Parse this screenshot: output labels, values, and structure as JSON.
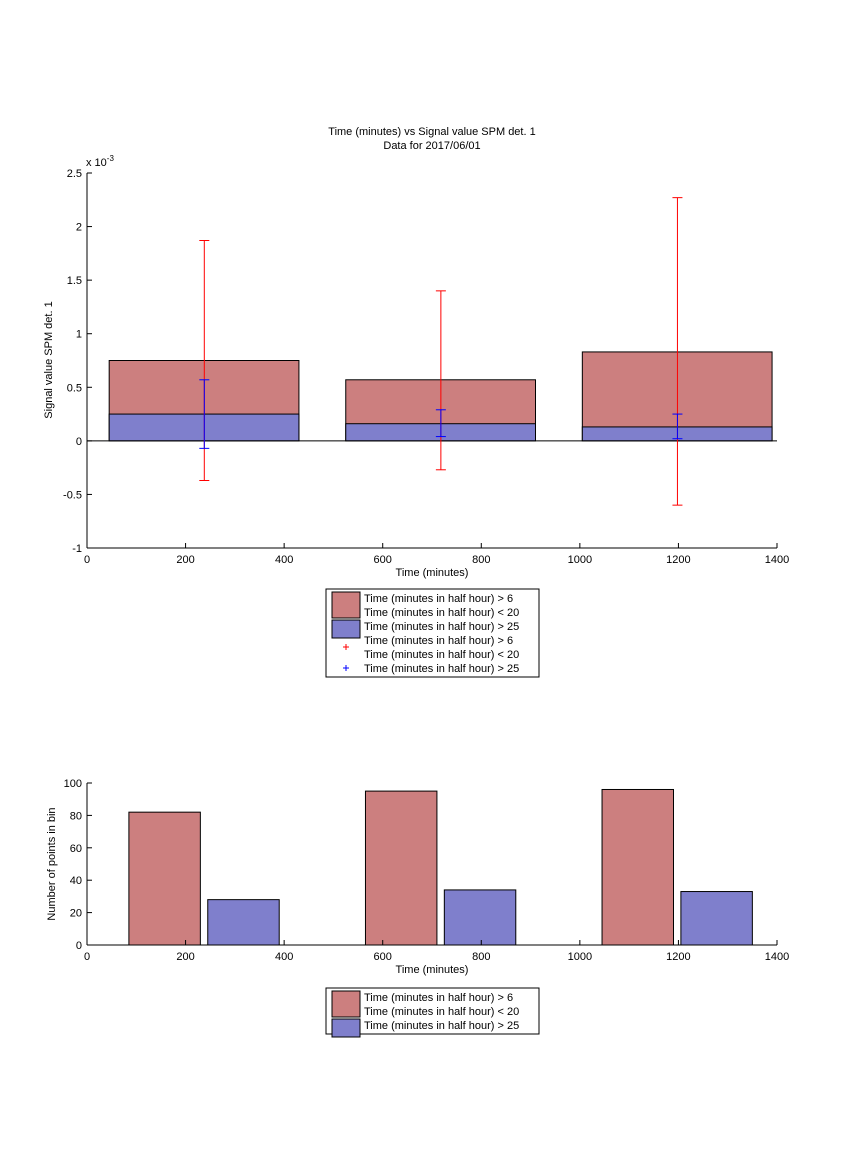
{
  "chart_data": [
    {
      "type": "bar",
      "title": "Time (minutes) vs Signal value SPM det. 1",
      "subtitle": "Data for 2017/06/01",
      "xlabel": "Time (minutes)",
      "ylabel": "Signal value SPM det. 1",
      "y_exponent_label": "x 10",
      "y_exponent_power": "-3",
      "xlim": [
        0,
        1400
      ],
      "ylim": [
        -1,
        2.5
      ],
      "x_ticks": [
        "0",
        "200",
        "400",
        "600",
        "800",
        "1000",
        "1200",
        "1400"
      ],
      "y_ticks": [
        "-1",
        "-0.5",
        "0",
        "0.5",
        "1",
        "1.5",
        "2",
        "2.5"
      ],
      "x_tick_values": [
        0,
        200,
        400,
        600,
        800,
        1000,
        1200,
        1400
      ],
      "y_tick_values": [
        -1,
        -0.5,
        0,
        0.5,
        1,
        1.5,
        2,
        2.5
      ],
      "bars": [
        {
          "x_start": 45,
          "x_end": 430,
          "series1": 0.75,
          "series2": 0.25
        },
        {
          "x_start": 525,
          "x_end": 910,
          "series1": 0.57,
          "series2": 0.16
        },
        {
          "x_start": 1005,
          "x_end": 1390,
          "series1": 0.83,
          "series2": 0.13
        }
      ],
      "errorbars": [
        {
          "x": 238,
          "series1_low": -0.37,
          "series1_high": 1.87,
          "series2_low": -0.07,
          "series2_high": 0.57
        },
        {
          "x": 718,
          "series1_low": -0.27,
          "series1_high": 1.4,
          "series2_low": 0.04,
          "series2_high": 0.29
        },
        {
          "x": 1198,
          "series1_low": -0.6,
          "series1_high": 2.27,
          "series2_low": 0.02,
          "series2_high": 0.25
        }
      ],
      "legend": {
        "placement": "below",
        "entries": [
          {
            "kind": "patch",
            "color": "#cc7f7f",
            "lines": [
              "Time (minutes in half hour) > 6",
              "Time (minutes in half hour) < 20"
            ]
          },
          {
            "kind": "patch",
            "color": "#7f7fcc",
            "lines": [
              "Time (minutes in half hour) > 25"
            ]
          },
          {
            "kind": "marker",
            "color": "#ff0000",
            "lines": [
              "Time (minutes in half hour) > 6",
              "Time (minutes in half hour) < 20"
            ]
          },
          {
            "kind": "marker",
            "color": "#0000ff",
            "lines": [
              "Time (minutes in half hour) > 25"
            ]
          }
        ]
      },
      "colors": {
        "series1_fill": "#cc7f7f",
        "series2_fill": "#7f7fcc",
        "series1_error": "#ff0000",
        "series2_error": "#0000ff"
      }
    },
    {
      "type": "bar",
      "xlabel": "Time (minutes)",
      "ylabel": "Number of points in bin",
      "xlim": [
        0,
        1400
      ],
      "ylim": [
        0,
        100
      ],
      "x_ticks": [
        "0",
        "200",
        "400",
        "600",
        "800",
        "1000",
        "1200",
        "1400"
      ],
      "y_ticks": [
        "0",
        "20",
        "40",
        "60",
        "80",
        "100"
      ],
      "x_tick_values": [
        0,
        200,
        400,
        600,
        800,
        1000,
        1200,
        1400
      ],
      "y_tick_values": [
        0,
        20,
        40,
        60,
        80,
        100
      ],
      "bars": [
        {
          "series": 1,
          "x_start": 85,
          "x_end": 230,
          "value": 82
        },
        {
          "series": 2,
          "x_start": 245,
          "x_end": 390,
          "value": 28
        },
        {
          "series": 1,
          "x_start": 565,
          "x_end": 710,
          "value": 95
        },
        {
          "series": 2,
          "x_start": 725,
          "x_end": 870,
          "value": 34
        },
        {
          "series": 1,
          "x_start": 1045,
          "x_end": 1190,
          "value": 96
        },
        {
          "series": 2,
          "x_start": 1205,
          "x_end": 1350,
          "value": 33
        }
      ],
      "legend": {
        "placement": "below",
        "entries": [
          {
            "kind": "patch",
            "color": "#cc7f7f",
            "lines": [
              "Time (minutes in half hour) > 6",
              "Time (minutes in half hour) < 20"
            ]
          },
          {
            "kind": "patch",
            "color": "#7f7fcc",
            "lines": [
              "Time (minutes in half hour) > 25"
            ]
          }
        ]
      },
      "colors": {
        "series1_fill": "#cc7f7f",
        "series2_fill": "#7f7fcc"
      }
    }
  ]
}
